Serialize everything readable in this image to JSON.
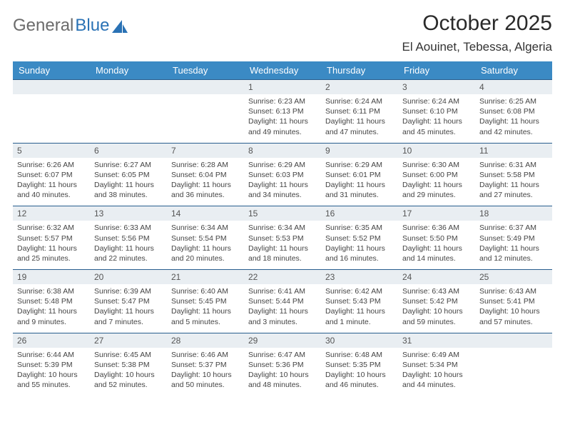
{
  "brand": {
    "part1": "General",
    "part2": "Blue"
  },
  "title": "October 2025",
  "location": "El Aouinet, Tebessa, Algeria",
  "header_bg": "#3b8ac4",
  "row_header_bg": "#e9eef2",
  "cell_border": "#285e8e",
  "day_labels": [
    "Sunday",
    "Monday",
    "Tuesday",
    "Wednesday",
    "Thursday",
    "Friday",
    "Saturday"
  ],
  "first_weekday_index": 3,
  "days": [
    {
      "n": 1,
      "sunrise": "6:23 AM",
      "sunset": "6:13 PM",
      "daylight": "11 hours and 49 minutes."
    },
    {
      "n": 2,
      "sunrise": "6:24 AM",
      "sunset": "6:11 PM",
      "daylight": "11 hours and 47 minutes."
    },
    {
      "n": 3,
      "sunrise": "6:24 AM",
      "sunset": "6:10 PM",
      "daylight": "11 hours and 45 minutes."
    },
    {
      "n": 4,
      "sunrise": "6:25 AM",
      "sunset": "6:08 PM",
      "daylight": "11 hours and 42 minutes."
    },
    {
      "n": 5,
      "sunrise": "6:26 AM",
      "sunset": "6:07 PM",
      "daylight": "11 hours and 40 minutes."
    },
    {
      "n": 6,
      "sunrise": "6:27 AM",
      "sunset": "6:05 PM",
      "daylight": "11 hours and 38 minutes."
    },
    {
      "n": 7,
      "sunrise": "6:28 AM",
      "sunset": "6:04 PM",
      "daylight": "11 hours and 36 minutes."
    },
    {
      "n": 8,
      "sunrise": "6:29 AM",
      "sunset": "6:03 PM",
      "daylight": "11 hours and 34 minutes."
    },
    {
      "n": 9,
      "sunrise": "6:29 AM",
      "sunset": "6:01 PM",
      "daylight": "11 hours and 31 minutes."
    },
    {
      "n": 10,
      "sunrise": "6:30 AM",
      "sunset": "6:00 PM",
      "daylight": "11 hours and 29 minutes."
    },
    {
      "n": 11,
      "sunrise": "6:31 AM",
      "sunset": "5:58 PM",
      "daylight": "11 hours and 27 minutes."
    },
    {
      "n": 12,
      "sunrise": "6:32 AM",
      "sunset": "5:57 PM",
      "daylight": "11 hours and 25 minutes."
    },
    {
      "n": 13,
      "sunrise": "6:33 AM",
      "sunset": "5:56 PM",
      "daylight": "11 hours and 22 minutes."
    },
    {
      "n": 14,
      "sunrise": "6:34 AM",
      "sunset": "5:54 PM",
      "daylight": "11 hours and 20 minutes."
    },
    {
      "n": 15,
      "sunrise": "6:34 AM",
      "sunset": "5:53 PM",
      "daylight": "11 hours and 18 minutes."
    },
    {
      "n": 16,
      "sunrise": "6:35 AM",
      "sunset": "5:52 PM",
      "daylight": "11 hours and 16 minutes."
    },
    {
      "n": 17,
      "sunrise": "6:36 AM",
      "sunset": "5:50 PM",
      "daylight": "11 hours and 14 minutes."
    },
    {
      "n": 18,
      "sunrise": "6:37 AM",
      "sunset": "5:49 PM",
      "daylight": "11 hours and 12 minutes."
    },
    {
      "n": 19,
      "sunrise": "6:38 AM",
      "sunset": "5:48 PM",
      "daylight": "11 hours and 9 minutes."
    },
    {
      "n": 20,
      "sunrise": "6:39 AM",
      "sunset": "5:47 PM",
      "daylight": "11 hours and 7 minutes."
    },
    {
      "n": 21,
      "sunrise": "6:40 AM",
      "sunset": "5:45 PM",
      "daylight": "11 hours and 5 minutes."
    },
    {
      "n": 22,
      "sunrise": "6:41 AM",
      "sunset": "5:44 PM",
      "daylight": "11 hours and 3 minutes."
    },
    {
      "n": 23,
      "sunrise": "6:42 AM",
      "sunset": "5:43 PM",
      "daylight": "11 hours and 1 minute."
    },
    {
      "n": 24,
      "sunrise": "6:43 AM",
      "sunset": "5:42 PM",
      "daylight": "10 hours and 59 minutes."
    },
    {
      "n": 25,
      "sunrise": "6:43 AM",
      "sunset": "5:41 PM",
      "daylight": "10 hours and 57 minutes."
    },
    {
      "n": 26,
      "sunrise": "6:44 AM",
      "sunset": "5:39 PM",
      "daylight": "10 hours and 55 minutes."
    },
    {
      "n": 27,
      "sunrise": "6:45 AM",
      "sunset": "5:38 PM",
      "daylight": "10 hours and 52 minutes."
    },
    {
      "n": 28,
      "sunrise": "6:46 AM",
      "sunset": "5:37 PM",
      "daylight": "10 hours and 50 minutes."
    },
    {
      "n": 29,
      "sunrise": "6:47 AM",
      "sunset": "5:36 PM",
      "daylight": "10 hours and 48 minutes."
    },
    {
      "n": 30,
      "sunrise": "6:48 AM",
      "sunset": "5:35 PM",
      "daylight": "10 hours and 46 minutes."
    },
    {
      "n": 31,
      "sunrise": "6:49 AM",
      "sunset": "5:34 PM",
      "daylight": "10 hours and 44 minutes."
    }
  ],
  "labels": {
    "sunrise": "Sunrise:",
    "sunset": "Sunset:",
    "daylight": "Daylight:"
  }
}
